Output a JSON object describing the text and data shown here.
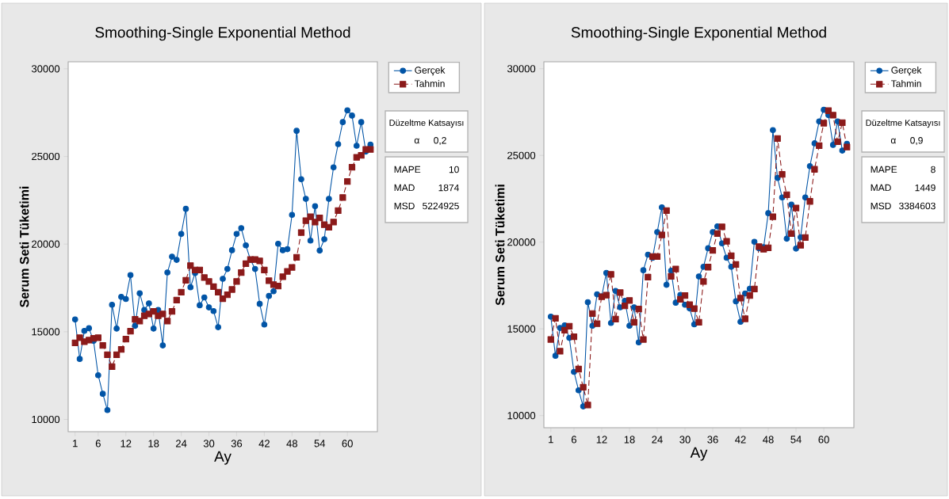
{
  "chart_data": [
    {
      "type": "line",
      "title": "Smoothing-Single Exponential Method",
      "xlabel": "Ay",
      "ylabel": "Serum Seti Tüketimi",
      "x": [
        1,
        2,
        3,
        4,
        5,
        6,
        7,
        8,
        9,
        10,
        11,
        12,
        13,
        14,
        15,
        16,
        17,
        18,
        19,
        20,
        21,
        22,
        23,
        24,
        25,
        26,
        27,
        28,
        29,
        30,
        31,
        32,
        33,
        34,
        35,
        36,
        37,
        38,
        39,
        40,
        41,
        42,
        43,
        44,
        45,
        46,
        47,
        48,
        49,
        50,
        51,
        52,
        53,
        54,
        55,
        56,
        57,
        58,
        59,
        60,
        61,
        62,
        63,
        64,
        65
      ],
      "series": [
        {
          "name": "Gerçek",
          "color": "#0054a6",
          "marker": "circle",
          "line_style": "solid",
          "values": [
            15700,
            13450,
            15050,
            15200,
            14480,
            12520,
            11460,
            10530,
            16540,
            15180,
            16990,
            16870,
            18230,
            15340,
            17190,
            16240,
            16620,
            15180,
            16240,
            14220,
            18380,
            19280,
            19100,
            20580,
            22010,
            17540,
            18350,
            16510,
            16960,
            16390,
            16180,
            15260,
            18020,
            18580,
            19650,
            20580,
            20910,
            19930,
            19100,
            18580,
            16590,
            15410,
            17040,
            17310,
            20020,
            19650,
            19710,
            21670,
            26460,
            23700,
            22580,
            20200,
            22160,
            19630,
            20280,
            22580,
            24380,
            25700,
            26960,
            27630,
            27330,
            25610,
            26960,
            25280,
            25670
          ]
        },
        {
          "name": "Tahmin",
          "color": "#8b1a1a",
          "marker": "square",
          "line_style": "dashed",
          "values": [
            14370,
            14660,
            14430,
            14520,
            14630,
            14660,
            14220,
            13690,
            13010,
            13690,
            13990,
            14580,
            15030,
            15710,
            15610,
            15910,
            16010,
            16160,
            15910,
            16010,
            15610,
            16160,
            16810,
            17260,
            17940,
            18770,
            18520,
            18520,
            18090,
            17870,
            17570,
            17260,
            16890,
            17110,
            17410,
            17870,
            18380,
            18880,
            19120,
            19120,
            19040,
            18520,
            17910,
            17690,
            17610,
            18140,
            18440,
            18670,
            19250,
            20660,
            21340,
            21560,
            21260,
            21490,
            21110,
            20960,
            21260,
            21910,
            22660,
            23570,
            24380,
            24950,
            25060,
            25400,
            25400
          ]
        }
      ],
      "xlim": [
        -0.5,
        66.5
      ],
      "ylim": [
        9300,
        30400
      ],
      "xticks": [
        1,
        6,
        12,
        18,
        24,
        30,
        36,
        42,
        48,
        54,
        60
      ],
      "yticks": [
        10000,
        15000,
        20000,
        25000,
        30000
      ],
      "legend": "right",
      "annotations": [
        "Düzeltme Katsayısı",
        "α",
        "0,2",
        "MAPE",
        "10",
        "MAD",
        "1874",
        "MSD",
        "5224925"
      ]
    },
    {
      "type": "line",
      "title": "Smoothing-Single Exponential Method",
      "xlabel": "Ay",
      "ylabel": "Serum Seti Tüketimi",
      "x": [
        1,
        2,
        3,
        4,
        5,
        6,
        7,
        8,
        9,
        10,
        11,
        12,
        13,
        14,
        15,
        16,
        17,
        18,
        19,
        20,
        21,
        22,
        23,
        24,
        25,
        26,
        27,
        28,
        29,
        30,
        31,
        32,
        33,
        34,
        35,
        36,
        37,
        38,
        39,
        40,
        41,
        42,
        43,
        44,
        45,
        46,
        47,
        48,
        49,
        50,
        51,
        52,
        53,
        54,
        55,
        56,
        57,
        58,
        59,
        60,
        61,
        62,
        63,
        64,
        65
      ],
      "series": [
        {
          "name": "Gerçek",
          "color": "#0054a6",
          "marker": "circle",
          "line_style": "solid",
          "values": [
            15700,
            13450,
            15050,
            15200,
            14480,
            12520,
            11460,
            10530,
            16540,
            15180,
            16990,
            16870,
            18230,
            15340,
            17190,
            16240,
            16620,
            15180,
            16240,
            14220,
            18380,
            19280,
            19100,
            20580,
            22010,
            17540,
            18350,
            16510,
            16960,
            16390,
            16180,
            15260,
            18020,
            18580,
            19650,
            20580,
            20910,
            19930,
            19100,
            18580,
            16590,
            15410,
            17040,
            17310,
            20020,
            19650,
            19710,
            21670,
            26460,
            23700,
            22580,
            20200,
            22160,
            19630,
            20280,
            22580,
            24380,
            25700,
            26960,
            27630,
            27330,
            25610,
            26960,
            25280,
            25670
          ]
        },
        {
          "name": "Tahmin",
          "color": "#8b1a1a",
          "marker": "square",
          "line_style": "dashed",
          "values": [
            14390,
            15610,
            13710,
            14920,
            15150,
            14550,
            12680,
            11640,
            10610,
            15880,
            15300,
            16850,
            16940,
            18140,
            15560,
            17090,
            16330,
            16640,
            15380,
            16140,
            14390,
            17980,
            19170,
            19170,
            20420,
            21820,
            18030,
            18450,
            16700,
            16920,
            16390,
            16170,
            15380,
            17730,
            18560,
            19520,
            20500,
            20880,
            20050,
            19220,
            18710,
            16770,
            15580,
            16920,
            17300,
            19740,
            19590,
            19670,
            21470,
            25980,
            23910,
            22730,
            20500,
            21970,
            19820,
            20270,
            22350,
            24200,
            25560,
            26860,
            27580,
            27320,
            25790,
            26890,
            25480
          ]
        }
      ],
      "xlim": [
        -0.5,
        66.5
      ],
      "ylim": [
        9300,
        30400
      ],
      "xticks": [
        1,
        6,
        12,
        18,
        24,
        30,
        36,
        42,
        48,
        54,
        60
      ],
      "yticks": [
        10000,
        15000,
        20000,
        25000,
        30000
      ],
      "legend": "right",
      "annotations": [
        "Düzeltme Katsayısı",
        "α",
        "0,9",
        "MAPE",
        "8",
        "MAD",
        "1449",
        "MSD",
        "3384603"
      ]
    }
  ]
}
